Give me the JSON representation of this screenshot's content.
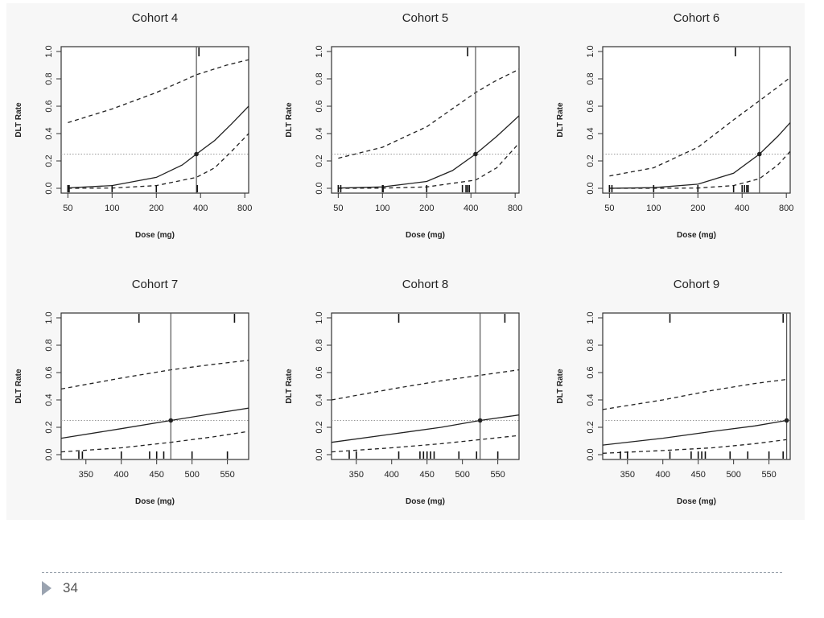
{
  "page": {
    "number": "34"
  },
  "chart_data": [
    {
      "type": "line",
      "title": "Cohort 4",
      "xlabel": "Dose (mg)",
      "ylabel": "DLT Rate",
      "x_scale": "log",
      "xlim": [
        45,
        850
      ],
      "ylim": [
        0,
        1
      ],
      "x_ticks": [
        50,
        100,
        200,
        400,
        800
      ],
      "y_ticks": [
        0.0,
        0.2,
        0.4,
        0.6,
        0.8,
        1.0
      ],
      "target_rate": 0.25,
      "estimated_dose": 375,
      "series": [
        {
          "style": "solid",
          "x": [
            50,
            100,
            200,
            300,
            375,
            500,
            650,
            850
          ],
          "y": [
            0.003,
            0.02,
            0.08,
            0.17,
            0.25,
            0.35,
            0.47,
            0.6
          ]
        },
        {
          "style": "dashed",
          "x": [
            50,
            100,
            200,
            375,
            600,
            850
          ],
          "y": [
            0.48,
            0.58,
            0.7,
            0.83,
            0.9,
            0.94
          ]
        },
        {
          "style": "dashed",
          "x": [
            50,
            100,
            200,
            375,
            500,
            650,
            850
          ],
          "y": [
            0.0,
            0.002,
            0.02,
            0.08,
            0.15,
            0.27,
            0.4
          ]
        }
      ],
      "rug_top": [
        390
      ],
      "rug_bottom": [
        50,
        51,
        100,
        200,
        380
      ]
    },
    {
      "type": "line",
      "title": "Cohort 5",
      "xlabel": "Dose (mg)",
      "ylabel": "DLT Rate",
      "x_scale": "log",
      "xlim": [
        45,
        850
      ],
      "ylim": [
        0,
        1
      ],
      "x_ticks": [
        50,
        100,
        200,
        400,
        800
      ],
      "y_ticks": [
        0.0,
        0.2,
        0.4,
        0.6,
        0.8,
        1.0
      ],
      "target_rate": 0.25,
      "estimated_dose": 430,
      "series": [
        {
          "style": "solid",
          "x": [
            50,
            100,
            200,
            300,
            430,
            600,
            850
          ],
          "y": [
            0.002,
            0.01,
            0.05,
            0.13,
            0.25,
            0.38,
            0.53
          ]
        },
        {
          "style": "dashed",
          "x": [
            50,
            100,
            200,
            430,
            600,
            850
          ],
          "y": [
            0.22,
            0.3,
            0.45,
            0.7,
            0.79,
            0.87
          ]
        },
        {
          "style": "dashed",
          "x": [
            50,
            100,
            200,
            430,
            600,
            850
          ],
          "y": [
            0.0,
            0.001,
            0.01,
            0.06,
            0.15,
            0.33
          ]
        }
      ],
      "rug_top": [
        380
      ],
      "rug_bottom": [
        50,
        52,
        100,
        101,
        200,
        350,
        370,
        380,
        390
      ]
    },
    {
      "type": "line",
      "title": "Cohort 6",
      "xlabel": "Dose (mg)",
      "ylabel": "DLT Rate",
      "x_scale": "log",
      "xlim": [
        45,
        850
      ],
      "ylim": [
        0,
        1
      ],
      "x_ticks": [
        50,
        100,
        200,
        400,
        800
      ],
      "y_ticks": [
        0.0,
        0.2,
        0.4,
        0.6,
        0.8,
        1.0
      ],
      "target_rate": 0.25,
      "estimated_dose": 525,
      "series": [
        {
          "style": "solid",
          "x": [
            50,
            100,
            200,
            350,
            525,
            700,
            850
          ],
          "y": [
            0.0,
            0.005,
            0.03,
            0.11,
            0.25,
            0.38,
            0.48
          ]
        },
        {
          "style": "dashed",
          "x": [
            50,
            100,
            200,
            350,
            525,
            700,
            850
          ],
          "y": [
            0.09,
            0.15,
            0.3,
            0.5,
            0.64,
            0.74,
            0.81
          ]
        },
        {
          "style": "dashed",
          "x": [
            50,
            100,
            200,
            350,
            525,
            700,
            850
          ],
          "y": [
            0.0,
            0.0,
            0.002,
            0.02,
            0.07,
            0.17,
            0.27
          ]
        }
      ],
      "rug_top": [
        360
      ],
      "rug_bottom": [
        50,
        52,
        100,
        200,
        350,
        400,
        415,
        430,
        440
      ]
    },
    {
      "type": "line",
      "title": "Cohort 7",
      "xlabel": "Dose (mg)",
      "ylabel": "DLT Rate",
      "x_scale": "linear",
      "xlim": [
        315,
        580
      ],
      "ylim": [
        0,
        1
      ],
      "x_ticks": [
        350,
        400,
        450,
        500,
        550
      ],
      "y_ticks": [
        0.0,
        0.2,
        0.4,
        0.6,
        0.8,
        1.0
      ],
      "target_rate": 0.25,
      "estimated_dose": 470,
      "series": [
        {
          "style": "solid",
          "x": [
            315,
            400,
            470,
            530,
            580
          ],
          "y": [
            0.12,
            0.19,
            0.25,
            0.3,
            0.34
          ]
        },
        {
          "style": "dashed",
          "x": [
            315,
            400,
            470,
            530,
            580
          ],
          "y": [
            0.48,
            0.56,
            0.62,
            0.66,
            0.69
          ]
        },
        {
          "style": "dashed",
          "x": [
            315,
            400,
            470,
            530,
            580
          ],
          "y": [
            0.02,
            0.05,
            0.09,
            0.13,
            0.17
          ]
        }
      ],
      "rug_top": [
        425,
        560
      ],
      "rug_bottom": [
        340,
        345,
        400,
        440,
        450,
        460,
        500,
        550
      ]
    },
    {
      "type": "line",
      "title": "Cohort 8",
      "xlabel": "Dose (mg)",
      "ylabel": "DLT Rate",
      "x_scale": "linear",
      "xlim": [
        315,
        580
      ],
      "ylim": [
        0,
        1
      ],
      "x_ticks": [
        350,
        400,
        450,
        500,
        550
      ],
      "y_ticks": [
        0.0,
        0.2,
        0.4,
        0.6,
        0.8,
        1.0
      ],
      "target_rate": 0.25,
      "estimated_dose": 525,
      "series": [
        {
          "style": "solid",
          "x": [
            315,
            400,
            470,
            525,
            580
          ],
          "y": [
            0.09,
            0.15,
            0.2,
            0.25,
            0.29
          ]
        },
        {
          "style": "dashed",
          "x": [
            315,
            400,
            470,
            525,
            580
          ],
          "y": [
            0.4,
            0.48,
            0.54,
            0.58,
            0.62
          ]
        },
        {
          "style": "dashed",
          "x": [
            315,
            400,
            470,
            525,
            580
          ],
          "y": [
            0.02,
            0.05,
            0.08,
            0.11,
            0.14
          ]
        }
      ],
      "rug_top": [
        410,
        560
      ],
      "rug_bottom": [
        340,
        350,
        410,
        440,
        445,
        450,
        455,
        460,
        495,
        520,
        550
      ]
    },
    {
      "type": "line",
      "title": "Cohort 9",
      "xlabel": "Dose (mg)",
      "ylabel": "DLT Rate",
      "x_scale": "linear",
      "xlim": [
        315,
        580
      ],
      "ylim": [
        0,
        1
      ],
      "x_ticks": [
        350,
        400,
        450,
        500,
        550
      ],
      "y_ticks": [
        0.0,
        0.2,
        0.4,
        0.6,
        0.8,
        1.0
      ],
      "target_rate": 0.25,
      "estimated_dose": 575,
      "series": [
        {
          "style": "solid",
          "x": [
            315,
            400,
            470,
            530,
            575
          ],
          "y": [
            0.07,
            0.12,
            0.17,
            0.21,
            0.25
          ]
        },
        {
          "style": "dashed",
          "x": [
            315,
            400,
            470,
            530,
            575
          ],
          "y": [
            0.33,
            0.4,
            0.47,
            0.52,
            0.55
          ]
        },
        {
          "style": "dashed",
          "x": [
            315,
            400,
            470,
            530,
            575
          ],
          "y": [
            0.01,
            0.03,
            0.05,
            0.08,
            0.11
          ]
        }
      ],
      "rug_top": [
        410,
        570
      ],
      "rug_bottom": [
        340,
        350,
        410,
        440,
        450,
        455,
        460,
        495,
        520,
        550,
        570
      ]
    }
  ]
}
